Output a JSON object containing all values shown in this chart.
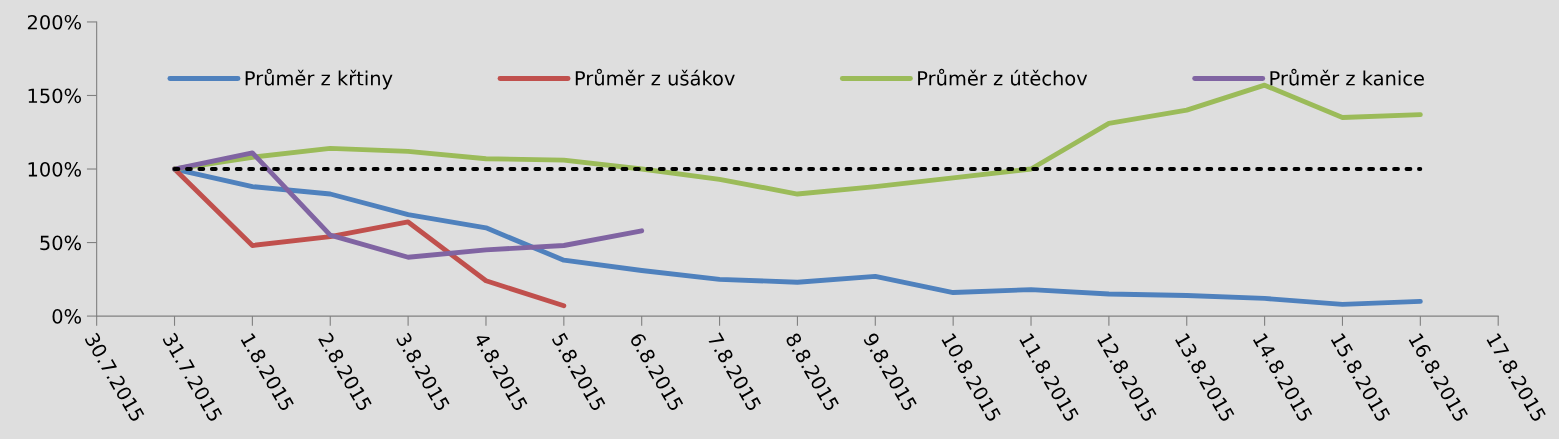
{
  "chart_data": {
    "type": "line",
    "x": [
      "2015-07-31",
      "2015-08-01",
      "2015-08-02",
      "2015-08-03",
      "2015-08-04",
      "2015-08-05",
      "2015-08-06",
      "2015-08-07",
      "2015-08-08",
      "2015-08-09",
      "2015-08-10",
      "2015-08-11",
      "2015-08-12",
      "2015-08-13",
      "2015-08-14",
      "2015-08-15",
      "2015-08-16"
    ],
    "series": [
      {
        "name": "Průměr z křtiny",
        "color": "#4f81bd",
        "values": [
          100,
          88,
          83,
          69,
          60,
          38,
          31,
          25,
          23,
          27,
          16,
          18,
          15,
          14,
          12,
          8,
          10
        ]
      },
      {
        "name": "Průměr z ušákov",
        "color": "#c0504d",
        "values": [
          100,
          48,
          54,
          64,
          24,
          7,
          null,
          null,
          null,
          null,
          null,
          null,
          null,
          null,
          null,
          null,
          null
        ]
      },
      {
        "name": "Průměr z útěchov",
        "color": "#9bbb59",
        "values": [
          100,
          108,
          114,
          112,
          107,
          106,
          100,
          93,
          83,
          88,
          94,
          100,
          131,
          140,
          157,
          135,
          137
        ]
      },
      {
        "name": "Průměr z kanice",
        "color": "#8064a2",
        "values": [
          100,
          111,
          55,
          40,
          45,
          48,
          58,
          null,
          null,
          null,
          null,
          null,
          null,
          null,
          null,
          null,
          null
        ]
      },
      {
        "color": "#000000",
        "line_style": "dotted",
        "x": [
          "2015-07-31",
          "2015-08-16"
        ],
        "values": [
          100,
          100
        ]
      }
    ],
    "xlim": [
      "2015-07-30",
      "2015-08-17"
    ],
    "xticks": [
      {
        "value": "2015-07-30",
        "label": "30.7.2015"
      },
      {
        "value": "2015-07-31",
        "label": "31.7.2015"
      },
      {
        "value": "2015-08-01",
        "label": "1.8.2015"
      },
      {
        "value": "2015-08-02",
        "label": "2.8.2015"
      },
      {
        "value": "2015-08-03",
        "label": "3.8.2015"
      },
      {
        "value": "2015-08-04",
        "label": "4.8.2015"
      },
      {
        "value": "2015-08-05",
        "label": "5.8.2015"
      },
      {
        "value": "2015-08-06",
        "label": "6.8.2015"
      },
      {
        "value": "2015-08-07",
        "label": "7.8.2015"
      },
      {
        "value": "2015-08-08",
        "label": "8.8.2015"
      },
      {
        "value": "2015-08-09",
        "label": "9.8.2015"
      },
      {
        "value": "2015-08-10",
        "label": "10.8.2015"
      },
      {
        "value": "2015-08-11",
        "label": "11.8.2015"
      },
      {
        "value": "2015-08-12",
        "label": "12.8.2015"
      },
      {
        "value": "2015-08-13",
        "label": "13.8.2015"
      },
      {
        "value": "2015-08-14",
        "label": "14.8.2015"
      },
      {
        "value": "2015-08-15",
        "label": "15.8.2015"
      },
      {
        "value": "2015-08-16",
        "label": "16.8.2015"
      },
      {
        "value": "2015-08-17",
        "label": "17.8.2015"
      }
    ],
    "ylim": [
      0,
      200
    ],
    "yticks": [
      {
        "value": 0,
        "label": "0%"
      },
      {
        "value": 50,
        "label": "50%"
      },
      {
        "value": 100,
        "label": "100%"
      },
      {
        "value": 150,
        "label": "150%"
      },
      {
        "value": 200,
        "label": "200%"
      }
    ],
    "grid": false,
    "legend": "top",
    "marker": "none",
    "line_style": "solid"
  }
}
